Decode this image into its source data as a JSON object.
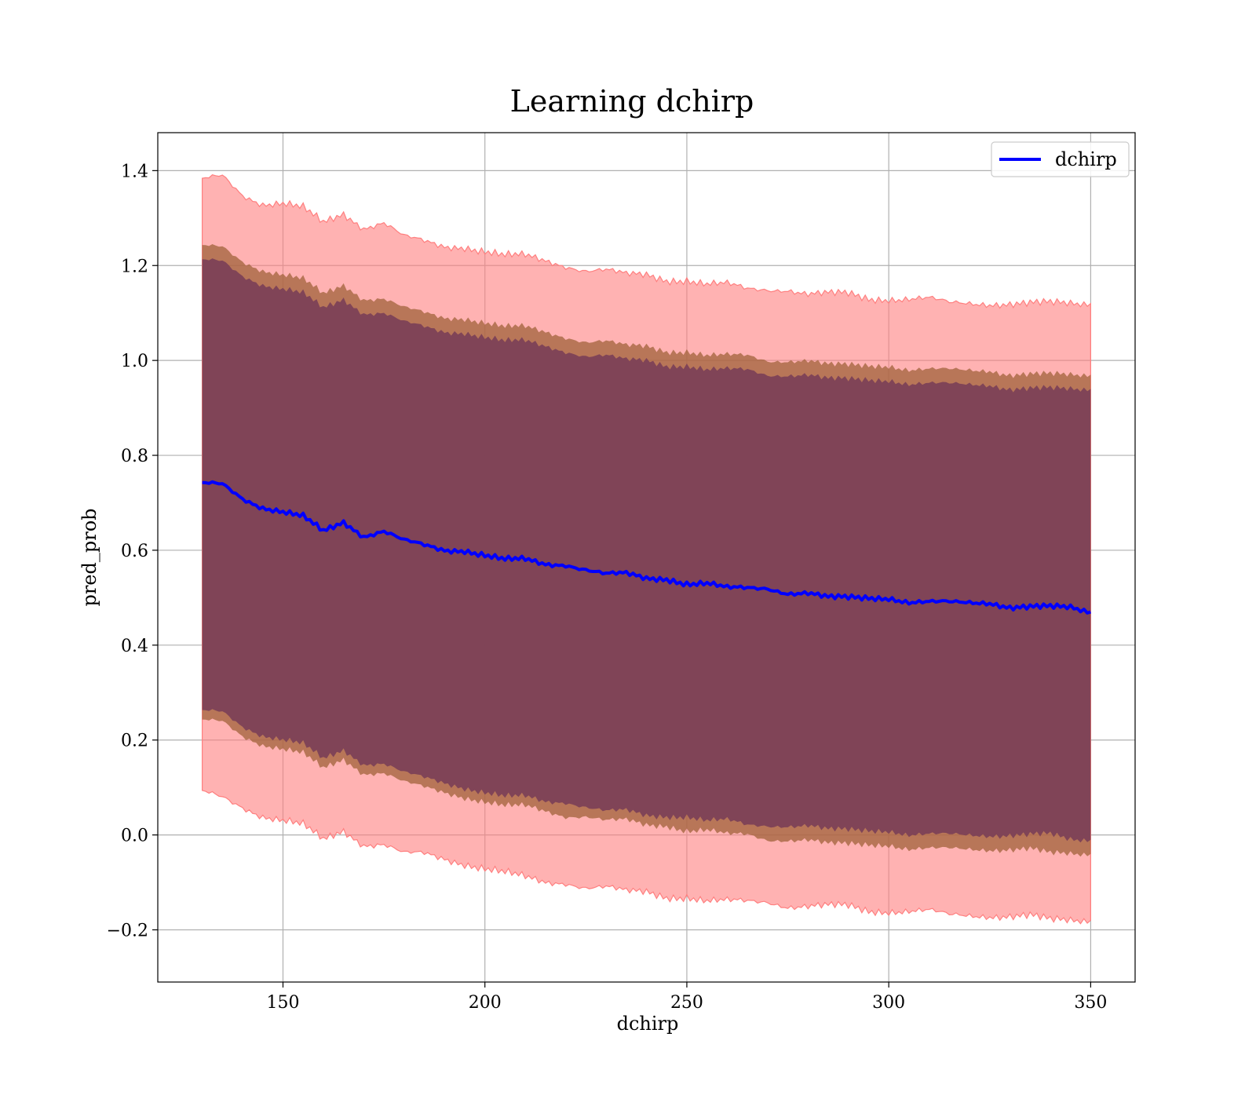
{
  "chart_data": {
    "type": "line",
    "title": "Learning dchirp",
    "xlabel": "dchirp",
    "ylabel": "pred_prob",
    "xlim": [
      119,
      361
    ],
    "ylim": [
      -0.31,
      1.48
    ],
    "x_ticks": [
      150,
      200,
      250,
      300,
      350
    ],
    "y_ticks": [
      -0.2,
      0.0,
      0.2,
      0.4,
      0.6,
      0.8,
      1.0,
      1.2,
      1.4
    ],
    "y_tick_labels": [
      "−0.2",
      "0.0",
      "0.2",
      "0.4",
      "0.6",
      "0.8",
      "1.0",
      "1.2",
      "1.4"
    ],
    "grid": true,
    "legend": {
      "position": "top-right",
      "entries": [
        "dchirp"
      ]
    },
    "colors": {
      "line": "#0000ff",
      "outer_band": "#ff7f7f",
      "middle_band": "#a0623a",
      "inner_band": "#7a3f58"
    },
    "x": [
      130,
      135,
      140,
      145,
      150,
      155,
      160,
      165,
      170,
      175,
      180,
      185,
      190,
      195,
      200,
      205,
      210,
      215,
      220,
      225,
      230,
      235,
      240,
      245,
      250,
      255,
      260,
      265,
      270,
      275,
      280,
      285,
      290,
      295,
      300,
      305,
      310,
      315,
      320,
      325,
      330,
      335,
      340,
      345,
      350
    ],
    "series": [
      {
        "name": "dchirp",
        "values": [
          0.74,
          0.74,
          0.71,
          0.69,
          0.68,
          0.67,
          0.64,
          0.66,
          0.63,
          0.64,
          0.62,
          0.61,
          0.6,
          0.6,
          0.59,
          0.58,
          0.58,
          0.57,
          0.57,
          0.56,
          0.55,
          0.55,
          0.54,
          0.54,
          0.53,
          0.53,
          0.52,
          0.52,
          0.52,
          0.51,
          0.51,
          0.5,
          0.5,
          0.5,
          0.5,
          0.49,
          0.49,
          0.49,
          0.49,
          0.49,
          0.48,
          0.48,
          0.48,
          0.48,
          0.47
        ],
        "outer_band": {
          "upper": [
            1.38,
            1.39,
            1.35,
            1.33,
            1.33,
            1.32,
            1.29,
            1.31,
            1.28,
            1.29,
            1.26,
            1.25,
            1.24,
            1.24,
            1.23,
            1.22,
            1.22,
            1.21,
            1.2,
            1.19,
            1.19,
            1.18,
            1.18,
            1.17,
            1.17,
            1.16,
            1.16,
            1.15,
            1.15,
            1.15,
            1.14,
            1.14,
            1.14,
            1.13,
            1.13,
            1.13,
            1.13,
            1.12,
            1.12,
            1.12,
            1.12,
            1.12,
            1.12,
            1.12,
            1.12
          ],
          "lower": [
            0.09,
            0.08,
            0.06,
            0.04,
            0.03,
            0.02,
            -0.01,
            0.01,
            -0.02,
            -0.02,
            -0.04,
            -0.04,
            -0.05,
            -0.06,
            -0.07,
            -0.08,
            -0.09,
            -0.1,
            -0.1,
            -0.11,
            -0.11,
            -0.12,
            -0.12,
            -0.13,
            -0.13,
            -0.14,
            -0.14,
            -0.14,
            -0.14,
            -0.15,
            -0.15,
            -0.15,
            -0.15,
            -0.16,
            -0.16,
            -0.16,
            -0.16,
            -0.17,
            -0.17,
            -0.17,
            -0.17,
            -0.17,
            -0.18,
            -0.18,
            -0.18
          ]
        },
        "middle_band": {
          "upper": [
            1.24,
            1.24,
            1.21,
            1.19,
            1.18,
            1.17,
            1.14,
            1.16,
            1.13,
            1.13,
            1.11,
            1.1,
            1.09,
            1.09,
            1.08,
            1.07,
            1.07,
            1.06,
            1.05,
            1.04,
            1.04,
            1.03,
            1.03,
            1.02,
            1.02,
            1.01,
            1.01,
            1.01,
            1.0,
            1.0,
            1.0,
            0.99,
            0.99,
            0.99,
            0.99,
            0.98,
            0.98,
            0.98,
            0.98,
            0.98,
            0.97,
            0.97,
            0.97,
            0.97,
            0.97
          ],
          "lower": [
            0.24,
            0.24,
            0.21,
            0.19,
            0.18,
            0.17,
            0.14,
            0.16,
            0.13,
            0.13,
            0.11,
            0.1,
            0.09,
            0.08,
            0.07,
            0.06,
            0.06,
            0.05,
            0.04,
            0.04,
            0.03,
            0.03,
            0.02,
            0.02,
            0.01,
            0.01,
            0.0,
            0.0,
            -0.01,
            -0.01,
            -0.01,
            -0.02,
            -0.02,
            -0.02,
            -0.02,
            -0.03,
            -0.03,
            -0.03,
            -0.03,
            -0.03,
            -0.03,
            -0.03,
            -0.04,
            -0.04,
            -0.04
          ]
        },
        "inner_band": {
          "upper": [
            1.21,
            1.21,
            1.18,
            1.16,
            1.15,
            1.14,
            1.11,
            1.13,
            1.1,
            1.1,
            1.08,
            1.07,
            1.06,
            1.06,
            1.05,
            1.04,
            1.04,
            1.03,
            1.02,
            1.01,
            1.01,
            1.0,
            1.0,
            0.99,
            0.99,
            0.98,
            0.98,
            0.98,
            0.97,
            0.97,
            0.97,
            0.96,
            0.96,
            0.96,
            0.96,
            0.95,
            0.95,
            0.95,
            0.95,
            0.95,
            0.94,
            0.94,
            0.94,
            0.94,
            0.94
          ],
          "lower": [
            0.26,
            0.26,
            0.23,
            0.21,
            0.2,
            0.19,
            0.16,
            0.18,
            0.15,
            0.15,
            0.13,
            0.12,
            0.11,
            0.1,
            0.09,
            0.08,
            0.08,
            0.07,
            0.07,
            0.06,
            0.05,
            0.05,
            0.04,
            0.04,
            0.04,
            0.03,
            0.03,
            0.02,
            0.02,
            0.02,
            0.02,
            0.01,
            0.01,
            0.01,
            0.01,
            0.0,
            0.0,
            0.0,
            0.0,
            0.0,
            0.0,
            0.0,
            0.0,
            -0.01,
            -0.01
          ]
        }
      }
    ]
  }
}
